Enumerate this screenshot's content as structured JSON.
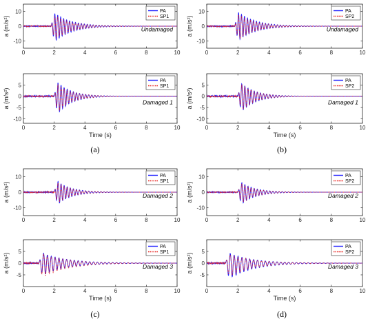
{
  "colors": {
    "pa": "#1f1fff",
    "sp": "#e8231f",
    "axis": "#262626"
  },
  "panel_labels": [
    "(a)",
    "(b)",
    "(c)",
    "(d)"
  ],
  "chart_data": [
    {
      "type": "line",
      "panel": "a",
      "annotation": "Undamaged",
      "ylabel": "a (m/s²)",
      "xlabel": "",
      "xlim": [
        0,
        10
      ],
      "ylim": [
        -15,
        15
      ],
      "xticks": [
        0,
        2,
        4,
        6,
        8,
        10
      ],
      "yticks": [
        -10,
        0,
        10
      ],
      "legend": "top-right",
      "series": [
        {
          "name": "PA",
          "style": "solid",
          "envelope": {
            "onset": 1.8,
            "peak_pos": 11,
            "peak_neg": -13,
            "decay": 1.1,
            "freq": 5.2
          }
        },
        {
          "name": "SP1",
          "style": "dotted",
          "envelope": {
            "onset": 1.8,
            "peak_pos": 9,
            "peak_neg": -11,
            "decay": 1.1,
            "freq": 5.2
          }
        }
      ]
    },
    {
      "type": "line",
      "panel": "a",
      "annotation": "Damaged 1",
      "ylabel": "a (m/s²)",
      "xlabel": "Time (s)",
      "xlim": [
        0,
        10
      ],
      "ylim": [
        -12,
        10
      ],
      "xticks": [
        0,
        2,
        4,
        6,
        8,
        10
      ],
      "yticks": [
        -10,
        -5,
        0,
        5
      ],
      "legend": "top-right",
      "series": [
        {
          "name": "PA",
          "style": "solid",
          "envelope": {
            "onset": 2.0,
            "peak_pos": 8,
            "peak_neg": -10,
            "decay": 0.9,
            "freq": 5.0
          }
        },
        {
          "name": "SP1",
          "style": "dotted",
          "envelope": {
            "onset": 2.0,
            "peak_pos": 7,
            "peak_neg": -9,
            "decay": 0.9,
            "freq": 5.0
          }
        }
      ]
    },
    {
      "type": "line",
      "panel": "b",
      "annotation": "Undamaged",
      "ylabel": "a (m/s²)",
      "xlabel": "",
      "xlim": [
        0,
        10
      ],
      "ylim": [
        -15,
        15
      ],
      "xticks": [
        0,
        2,
        4,
        6,
        8,
        10
      ],
      "yticks": [
        -10,
        0,
        10
      ],
      "legend": "top-right",
      "series": [
        {
          "name": "PA",
          "style": "solid",
          "envelope": {
            "onset": 1.8,
            "peak_pos": 12,
            "peak_neg": -12,
            "decay": 1.1,
            "freq": 5.2
          }
        },
        {
          "name": "SP2",
          "style": "dotted",
          "envelope": {
            "onset": 1.8,
            "peak_pos": 10,
            "peak_neg": -11,
            "decay": 1.1,
            "freq": 5.2
          }
        }
      ]
    },
    {
      "type": "line",
      "panel": "b",
      "annotation": "Damaged 1",
      "ylabel": "a (m/s²)",
      "xlabel": "Time (s)",
      "xlim": [
        0,
        10
      ],
      "ylim": [
        -12,
        10
      ],
      "xticks": [
        0,
        2,
        4,
        6,
        8,
        10
      ],
      "yticks": [
        -10,
        -5,
        0,
        5
      ],
      "legend": "top-right",
      "series": [
        {
          "name": "PA",
          "style": "solid",
          "envelope": {
            "onset": 2.0,
            "peak_pos": 7.5,
            "peak_neg": -9,
            "decay": 0.9,
            "freq": 5.0
          }
        },
        {
          "name": "SP2",
          "style": "dotted",
          "envelope": {
            "onset": 2.0,
            "peak_pos": 7,
            "peak_neg": -8,
            "decay": 0.9,
            "freq": 5.0
          }
        }
      ]
    },
    {
      "type": "line",
      "panel": "c",
      "annotation": "Damaged 2",
      "ylabel": "a (m/s²)",
      "xlabel": "",
      "xlim": [
        0,
        10
      ],
      "ylim": [
        -15,
        15
      ],
      "xticks": [
        0,
        2,
        4,
        6,
        8,
        10
      ],
      "yticks": [
        -10,
        0,
        10
      ],
      "legend": "top-right",
      "series": [
        {
          "name": "PA",
          "style": "solid",
          "envelope": {
            "onset": 2.0,
            "peak_pos": 9,
            "peak_neg": -10,
            "decay": 0.9,
            "freq": 5.0
          }
        },
        {
          "name": "SP1",
          "style": "dotted",
          "envelope": {
            "onset": 2.0,
            "peak_pos": 8,
            "peak_neg": -9,
            "decay": 0.9,
            "freq": 5.0
          }
        }
      ]
    },
    {
      "type": "line",
      "panel": "c",
      "annotation": "Damaged 3",
      "ylabel": "a (m/s²)",
      "xlabel": "Time (s)",
      "xlim": [
        0,
        10
      ],
      "ylim": [
        -10,
        10
      ],
      "xticks": [
        0,
        2,
        4,
        6,
        8,
        10
      ],
      "yticks": [
        -5,
        0,
        5
      ],
      "legend": "top-right",
      "series": [
        {
          "name": "PA",
          "style": "solid",
          "envelope": {
            "onset": 1.0,
            "peak_pos": 5,
            "peak_neg": -6,
            "decay": 1.6,
            "freq": 4.0
          }
        },
        {
          "name": "SP1",
          "style": "dotted",
          "envelope": {
            "onset": 1.0,
            "peak_pos": 4.5,
            "peak_neg": -7,
            "decay": 1.6,
            "freq": 4.0
          }
        }
      ]
    },
    {
      "type": "line",
      "panel": "d",
      "annotation": "Damaged 2",
      "ylabel": "a (m/s²)",
      "xlabel": "",
      "xlim": [
        0,
        10
      ],
      "ylim": [
        -15,
        15
      ],
      "xticks": [
        0,
        2,
        4,
        6,
        8,
        10
      ],
      "yticks": [
        -10,
        0,
        10
      ],
      "legend": "top-right",
      "series": [
        {
          "name": "PA",
          "style": "solid",
          "envelope": {
            "onset": 2.0,
            "peak_pos": 8,
            "peak_neg": -10,
            "decay": 0.9,
            "freq": 5.0
          }
        },
        {
          "name": "SP2",
          "style": "dotted",
          "envelope": {
            "onset": 2.0,
            "peak_pos": 7,
            "peak_neg": -9,
            "decay": 0.9,
            "freq": 5.0
          }
        }
      ]
    },
    {
      "type": "line",
      "panel": "d",
      "annotation": "Damaged 3",
      "ylabel": "a (m/s²)",
      "xlabel": "Time (s)",
      "xlim": [
        0,
        10
      ],
      "ylim": [
        -10,
        10
      ],
      "xticks": [
        0,
        2,
        4,
        6,
        8,
        10
      ],
      "yticks": [
        -5,
        0,
        5
      ],
      "legend": "top-right",
      "series": [
        {
          "name": "PA",
          "style": "solid",
          "envelope": {
            "onset": 1.2,
            "peak_pos": 5,
            "peak_neg": -8,
            "decay": 1.5,
            "freq": 4.0
          }
        },
        {
          "name": "SP2",
          "style": "dotted",
          "envelope": {
            "onset": 1.2,
            "peak_pos": 4.5,
            "peak_neg": -7,
            "decay": 1.5,
            "freq": 4.0
          }
        }
      ]
    }
  ]
}
